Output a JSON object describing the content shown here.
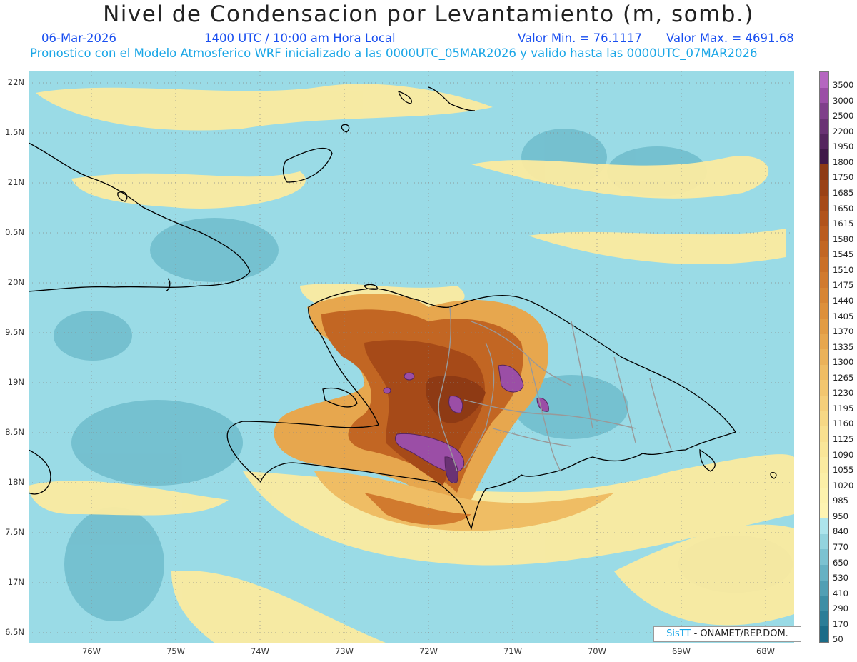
{
  "header": {
    "title": "Nivel de Condensacion por Levantamiento (m, somb.)",
    "date": "06-Mar-2026",
    "time": "1400 UTC / 10:00 am Hora Local",
    "value_min": "Valor Min. = 76.1117",
    "value_max": "Valor Max. = 4691.68",
    "model_line": "Pronostico con el Modelo Atmosferico WRF inicializado a las 0000UTC_05MAR2026 y valido hasta las  0000UTC_07MAR2026"
  },
  "map": {
    "lat_ticks": [
      "22N",
      "1.5N",
      "21N",
      "0.5N",
      "20N",
      "9.5N",
      "19N",
      "8.5N",
      "18N",
      "7.5N",
      "17N",
      "6.5N"
    ],
    "lon_ticks": [
      "76W",
      "75W",
      "74W",
      "73W",
      "72W",
      "71W",
      "70W",
      "69W",
      "68W"
    ],
    "colors": {
      "ocean_fill": "#9adbe6",
      "coast_line": "#000000",
      "border_line": "#999999",
      "grid_line": "#888888"
    }
  },
  "colorbar": {
    "labels": [
      "3500",
      "3000",
      "2500",
      "2200",
      "1950",
      "1800",
      "1750",
      "1685",
      "1650",
      "1615",
      "1580",
      "1545",
      "1510",
      "1475",
      "1440",
      "1405",
      "1370",
      "1335",
      "1300",
      "1265",
      "1230",
      "1195",
      "1160",
      "1125",
      "1090",
      "1055",
      "1020",
      "985",
      "950",
      "840",
      "770",
      "650",
      "530",
      "410",
      "290",
      "170",
      "50"
    ],
    "colors": [
      "#b566c0",
      "#9b4ea6",
      "#7f3f8a",
      "#6a3274",
      "#55255e",
      "#401848",
      "#8e3a14",
      "#9a4216",
      "#a64a18",
      "#b1531b",
      "#ba5c1f",
      "#c26623",
      "#ca7028",
      "#d17a2e",
      "#d78534",
      "#dd903b",
      "#e29c44",
      "#e7a74e",
      "#ebb259",
      "#efbd64",
      "#f2c66f",
      "#f5cf7a",
      "#f7d885",
      "#f9e08f",
      "#fae698",
      "#fbeba0",
      "#fcefa7",
      "#fdf2ad",
      "#fef4b2",
      "#ade4ec",
      "#93d3de",
      "#7cc2d1",
      "#66b1c3",
      "#519fb4",
      "#3d8ea5",
      "#2b7d97",
      "#1b6c88"
    ]
  },
  "credit": {
    "brand": "SisTT",
    "text": " - ONAMET/REP.DOM."
  }
}
